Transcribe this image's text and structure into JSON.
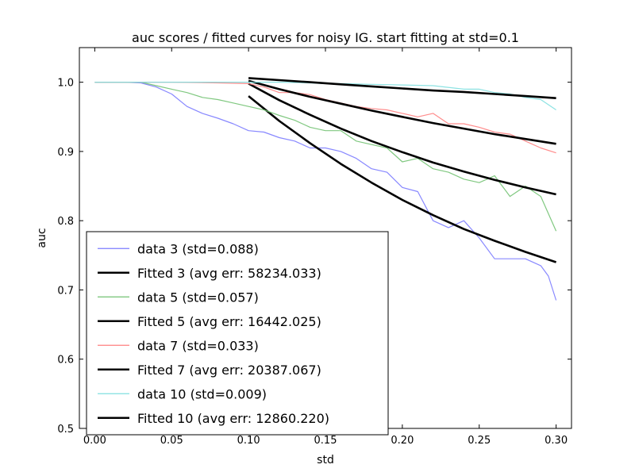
{
  "chart_data": {
    "type": "line",
    "title": "auc scores / fitted curves for noisy IG. start fitting at std=0.1",
    "xlabel": "std",
    "ylabel": "auc",
    "xlim": [
      -0.01,
      0.31
    ],
    "ylim": [
      0.5,
      1.05
    ],
    "xticks": [
      "0.00",
      "0.05",
      "0.10",
      "0.15",
      "0.20",
      "0.25",
      "0.30"
    ],
    "yticks": [
      "0.5",
      "0.6",
      "0.7",
      "0.8",
      "0.9",
      "1.0"
    ],
    "grid": false,
    "legend_position": "lower-left",
    "series": [
      {
        "name": "data 3 (std=0.088)",
        "kind": "data",
        "color": "#7b7bff",
        "x": [
          0.0,
          0.02,
          0.03,
          0.04,
          0.05,
          0.06,
          0.07,
          0.08,
          0.09,
          0.1,
          0.11,
          0.12,
          0.13,
          0.14,
          0.15,
          0.16,
          0.17,
          0.18,
          0.19,
          0.2,
          0.21,
          0.22,
          0.23,
          0.24,
          0.25,
          0.26,
          0.27,
          0.28,
          0.29,
          0.295,
          0.3
        ],
        "y": [
          1.0,
          1.0,
          0.999,
          0.993,
          0.983,
          0.965,
          0.955,
          0.948,
          0.94,
          0.93,
          0.928,
          0.92,
          0.915,
          0.905,
          0.905,
          0.9,
          0.89,
          0.875,
          0.87,
          0.848,
          0.842,
          0.8,
          0.79,
          0.8,
          0.775,
          0.745,
          0.745,
          0.745,
          0.735,
          0.72,
          0.685
        ]
      },
      {
        "name": "Fitted 3 (avg err: 58234.033)",
        "kind": "fit",
        "color": "#000000",
        "x": [
          0.1,
          0.12,
          0.14,
          0.16,
          0.18,
          0.2,
          0.22,
          0.24,
          0.26,
          0.28,
          0.3
        ],
        "y": [
          0.98,
          0.944,
          0.912,
          0.882,
          0.855,
          0.83,
          0.808,
          0.788,
          0.771,
          0.755,
          0.74
        ]
      },
      {
        "name": "data 5 (std=0.057)",
        "kind": "data",
        "color": "#72c272",
        "x": [
          0.0,
          0.03,
          0.04,
          0.05,
          0.06,
          0.07,
          0.08,
          0.09,
          0.1,
          0.11,
          0.12,
          0.13,
          0.14,
          0.15,
          0.16,
          0.17,
          0.18,
          0.19,
          0.2,
          0.21,
          0.22,
          0.23,
          0.24,
          0.25,
          0.26,
          0.27,
          0.28,
          0.29,
          0.3
        ],
        "y": [
          1.0,
          1.0,
          0.995,
          0.99,
          0.985,
          0.978,
          0.975,
          0.97,
          0.965,
          0.96,
          0.952,
          0.945,
          0.935,
          0.93,
          0.93,
          0.915,
          0.91,
          0.905,
          0.885,
          0.89,
          0.875,
          0.87,
          0.86,
          0.855,
          0.865,
          0.835,
          0.85,
          0.835,
          0.785
        ]
      },
      {
        "name": "Fitted 5 (avg err: 16442.025)",
        "kind": "fit",
        "color": "#000000",
        "x": [
          0.1,
          0.12,
          0.14,
          0.16,
          0.18,
          0.2,
          0.22,
          0.24,
          0.26,
          0.28,
          0.3
        ],
        "y": [
          0.998,
          0.974,
          0.953,
          0.933,
          0.915,
          0.899,
          0.884,
          0.871,
          0.859,
          0.848,
          0.838
        ]
      },
      {
        "name": "data 7 (std=0.033)",
        "kind": "data",
        "color": "#ff7f7f",
        "x": [
          0.0,
          0.05,
          0.08,
          0.1,
          0.11,
          0.12,
          0.13,
          0.14,
          0.15,
          0.16,
          0.17,
          0.18,
          0.19,
          0.2,
          0.21,
          0.22,
          0.23,
          0.24,
          0.25,
          0.26,
          0.27,
          0.28,
          0.29,
          0.3
        ],
        "y": [
          1.0,
          1.0,
          0.999,
          0.998,
          0.993,
          0.985,
          0.985,
          0.982,
          0.975,
          0.97,
          0.965,
          0.962,
          0.96,
          0.955,
          0.95,
          0.955,
          0.94,
          0.94,
          0.935,
          0.928,
          0.925,
          0.915,
          0.905,
          0.898
        ]
      },
      {
        "name": "Fitted 7 (avg err: 20387.067)",
        "kind": "fit",
        "color": "#000000",
        "x": [
          0.1,
          0.12,
          0.14,
          0.16,
          0.18,
          0.2,
          0.22,
          0.24,
          0.26,
          0.28,
          0.3
        ],
        "y": [
          1.002,
          0.99,
          0.979,
          0.969,
          0.959,
          0.95,
          0.941,
          0.933,
          0.925,
          0.918,
          0.911
        ]
      },
      {
        "name": "data 10 (std=0.009)",
        "kind": "data",
        "color": "#7fdfdf",
        "x": [
          0.0,
          0.05,
          0.1,
          0.12,
          0.14,
          0.15,
          0.16,
          0.18,
          0.2,
          0.22,
          0.24,
          0.25,
          0.26,
          0.27,
          0.28,
          0.29,
          0.3
        ],
        "y": [
          1.0,
          1.0,
          1.0,
          1.0,
          0.999,
          0.998,
          0.998,
          0.997,
          0.996,
          0.995,
          0.99,
          0.99,
          0.985,
          0.983,
          0.978,
          0.975,
          0.96
        ]
      },
      {
        "name": "Fitted 10 (avg err: 12860.220)",
        "kind": "fit",
        "color": "#000000",
        "x": [
          0.1,
          0.12,
          0.14,
          0.16,
          0.18,
          0.2,
          0.22,
          0.24,
          0.26,
          0.28,
          0.3
        ],
        "y": [
          1.006,
          1.003,
          1.0,
          0.997,
          0.994,
          0.991,
          0.988,
          0.986,
          0.983,
          0.98,
          0.977
        ]
      }
    ]
  }
}
